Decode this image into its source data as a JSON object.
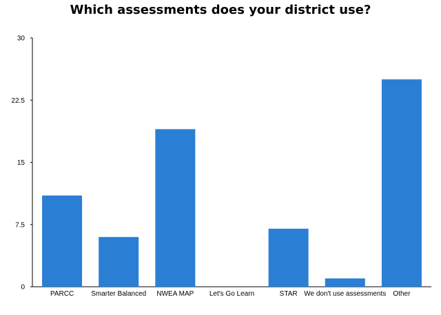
{
  "chart_data": {
    "type": "bar",
    "title": "Which assessments does your district use?",
    "xlabel": "",
    "ylabel": "",
    "categories": [
      "PARCC",
      "Smarter Balanced",
      "NWEA MAP",
      "Let's Go Learn",
      "STAR",
      "We don't use assessments",
      "Other"
    ],
    "values": [
      11,
      6,
      19,
      0,
      7,
      1,
      25
    ],
    "ylim": [
      0,
      30
    ],
    "yticks": [
      "0",
      "7.5",
      "15",
      "22.5",
      "30"
    ],
    "grid": false,
    "legend": "none",
    "bar_color": "#2a7fd4"
  }
}
